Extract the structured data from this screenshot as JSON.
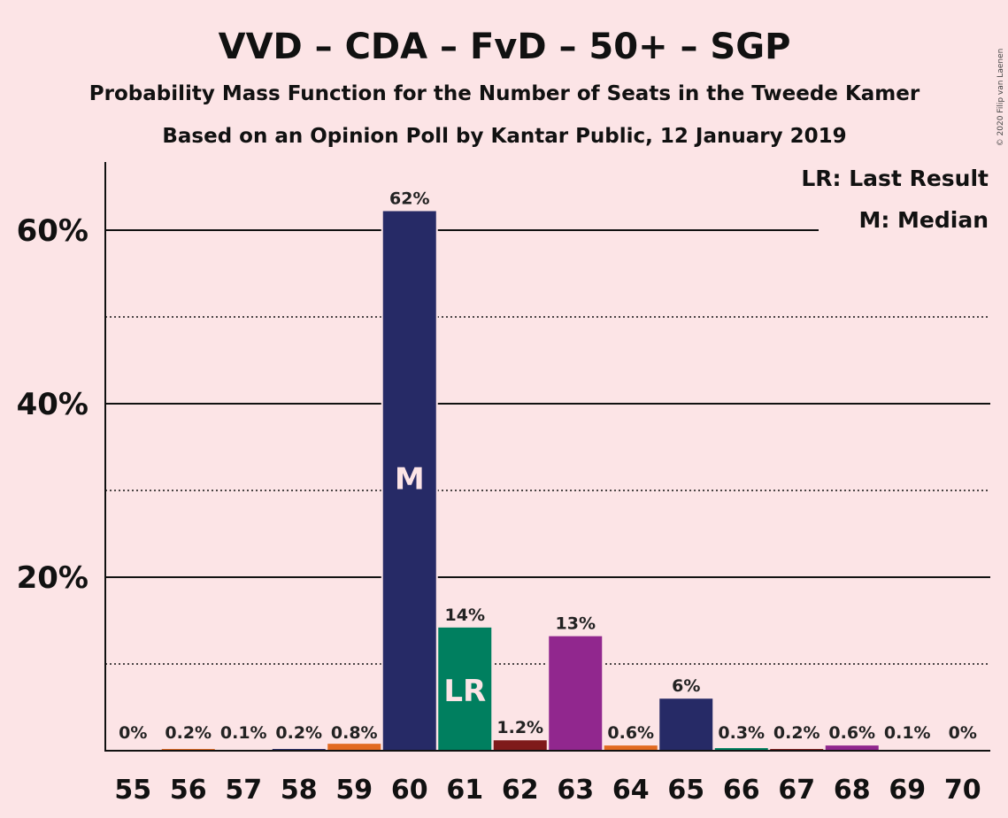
{
  "chart_data": {
    "type": "bar",
    "title": "VVD – CDA – FvD – 50+ – SGP",
    "subtitle": "Probability Mass Function for the Number of Seats in the Tweede Kamer",
    "subtitle2": "Based on an Opinion Poll by Kantar Public, 12 January 2019",
    "credit": "© 2020 Filip van Laenen",
    "xlabel": "",
    "ylabel": "",
    "ylim": [
      0,
      68
    ],
    "yticks": [
      20,
      40,
      60
    ],
    "ytick_labels": [
      "20%",
      "40%",
      "60%"
    ],
    "dotted_gridlines": [
      10,
      30,
      50
    ],
    "categories": [
      "55",
      "56",
      "57",
      "58",
      "59",
      "60",
      "61",
      "62",
      "63",
      "64",
      "65",
      "66",
      "67",
      "68",
      "69",
      "70"
    ],
    "values": [
      0,
      0.2,
      0.1,
      0.2,
      0.8,
      62.2,
      14.2,
      1.2,
      13.2,
      0.6,
      6.0,
      0.3,
      0.2,
      0.6,
      0.1,
      0
    ],
    "labels": [
      "0%",
      "0.2%",
      "0.1%",
      "0.2%",
      "0.8%",
      "62%",
      "14%",
      "1.2%",
      "13%",
      "0.6%",
      "6%",
      "0.3%",
      "0.2%",
      "0.6%",
      "0.1%",
      "0%"
    ],
    "colors": [
      "#E26A21",
      "#E26A21",
      "#262A66",
      "#262A66",
      "#E26A21",
      "#262A66",
      "#007F5F",
      "#7F1A1A",
      "#91278E",
      "#E26A21",
      "#262A66",
      "#007F5F",
      "#7F1A1A",
      "#91278E",
      "#E26A21",
      "#262A66"
    ],
    "median_seat": "60",
    "median_mark": "M",
    "last_result_seat": "61",
    "last_result_mark": "LR",
    "legend": {
      "position": "top-right",
      "entries": [
        "LR: Last Result",
        "M: Median"
      ]
    }
  }
}
